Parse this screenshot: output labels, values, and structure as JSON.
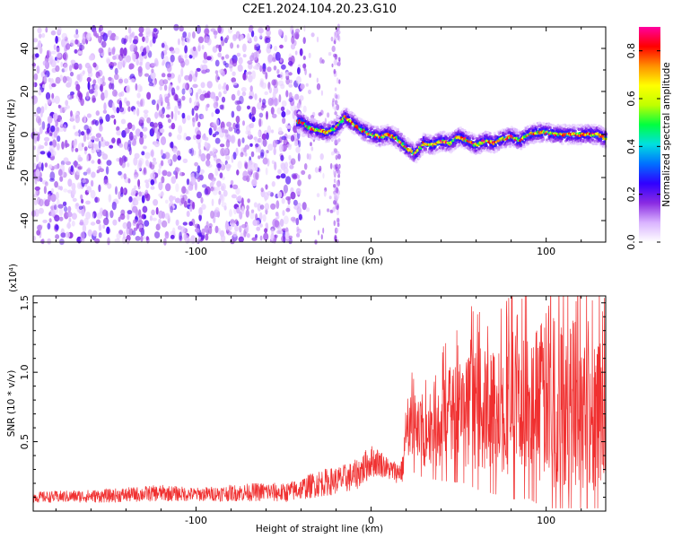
{
  "chart_data": [
    {
      "type": "heatmap",
      "title": "C2E1.2024.104.20.23.G10",
      "xlabel": "Height of straight line (km)",
      "ylabel": "Frequency (Hz)",
      "xlim": [
        -193,
        134
      ],
      "ylim": [
        -50,
        50
      ],
      "x_ticks": [
        -100,
        0,
        100
      ],
      "x_tick_labels": [
        "-100",
        "0",
        "100"
      ],
      "y_ticks": [
        -40,
        -20,
        0,
        20,
        40
      ],
      "y_tick_labels": [
        "-40",
        "-20",
        "0",
        "20",
        "40"
      ],
      "colorbar": {
        "label": "Normalized spectral amplitude",
        "range": [
          0,
          0.9
        ],
        "ticks": [
          0,
          0.2,
          0.4,
          0.6,
          0.8
        ],
        "tick_labels": [
          "0.0",
          "0.2",
          "0.4",
          "0.6",
          "0.8"
        ],
        "colormap": [
          "#ffffff",
          "#d9b3ff",
          "#8a2be2",
          "#3000ff",
          "#0070ff",
          "#00e0e0",
          "#00ff40",
          "#c0ff00",
          "#ffff00",
          "#ff9000",
          "#ff0000",
          "#ff00a0"
        ]
      },
      "noise_region_x": [
        -193,
        -38
      ],
      "sparse_region_x": [
        -38,
        -18
      ],
      "signal_track": {
        "x": [
          -40,
          -35,
          -30,
          -25,
          -20,
          -15,
          -10,
          -5,
          0,
          5,
          10,
          15,
          20,
          25,
          30,
          35,
          40,
          45,
          50,
          55,
          60,
          65,
          70,
          75,
          80,
          85,
          90,
          95,
          100,
          105,
          110,
          115,
          120,
          125,
          130,
          134
        ],
        "y": [
          6,
          3,
          2,
          1,
          3,
          8,
          5,
          2,
          0,
          -1,
          0,
          -2,
          -6,
          -9,
          -4,
          -5,
          -3,
          -4,
          -1,
          -3,
          -5,
          -3,
          -4,
          -2,
          -1,
          -3,
          0,
          1,
          1,
          0,
          0,
          0,
          0,
          0,
          0,
          -2
        ]
      }
    },
    {
      "type": "line",
      "xlabel": "Height of straight line (km)",
      "ylabel": "SNR (10 * v/v)",
      "y_multiplier": "(x10⁴)",
      "xlim": [
        -193,
        134
      ],
      "ylim": [
        0,
        1.55
      ],
      "x_ticks": [
        -100,
        0,
        100
      ],
      "x_tick_labels": [
        "-100",
        "0",
        "100"
      ],
      "y_ticks": [
        0.5,
        1.0,
        1.5
      ],
      "y_tick_labels": [
        "0.5",
        "1.0",
        "1.5"
      ],
      "line_color": "#f03030",
      "series": [
        {
          "x": [
            -193,
            -150,
            -120,
            -100,
            -80,
            -60,
            -50,
            -40,
            -30,
            -20,
            -10,
            -5,
            0,
            5,
            10,
            15,
            18,
            20,
            25,
            30,
            35,
            40,
            45,
            50,
            55,
            60,
            65,
            70,
            75,
            80,
            85,
            90,
            95,
            100,
            105,
            110,
            115,
            120,
            125,
            130,
            134
          ],
          "y": [
            0.1,
            0.11,
            0.13,
            0.12,
            0.13,
            0.14,
            0.13,
            0.16,
            0.2,
            0.22,
            0.25,
            0.3,
            0.36,
            0.35,
            0.3,
            0.28,
            0.3,
            0.58,
            0.6,
            0.55,
            0.62,
            0.66,
            0.68,
            0.7,
            0.72,
            0.74,
            0.72,
            0.72,
            0.74,
            0.8,
            0.76,
            0.74,
            0.78,
            0.82,
            0.8,
            0.76,
            0.78,
            0.8,
            0.76,
            0.74,
            0.8
          ],
          "amplitude": [
            0.04,
            0.05,
            0.06,
            0.05,
            0.06,
            0.07,
            0.07,
            0.08,
            0.1,
            0.1,
            0.11,
            0.12,
            0.12,
            0.1,
            0.08,
            0.08,
            0.1,
            0.22,
            0.25,
            0.24,
            0.3,
            0.34,
            0.36,
            0.38,
            0.4,
            0.45,
            0.44,
            0.46,
            0.48,
            0.55,
            0.52,
            0.5,
            0.56,
            0.62,
            0.66,
            0.6,
            0.62,
            0.66,
            0.62,
            0.6,
            0.64
          ]
        }
      ]
    }
  ]
}
